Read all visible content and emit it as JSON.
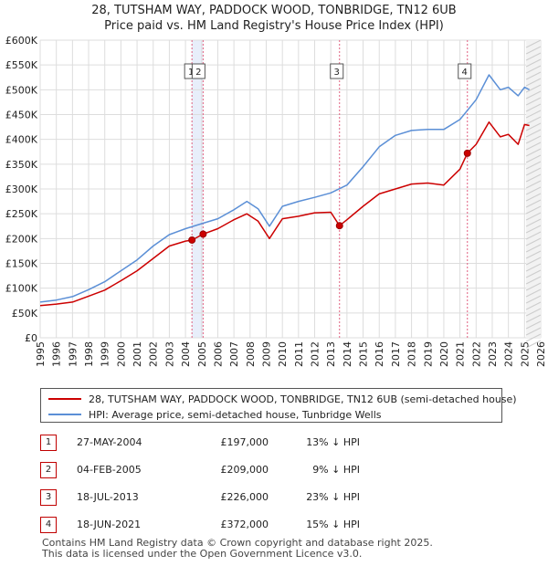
{
  "chart_data": {
    "type": "line",
    "title": "28, TUTSHAM WAY, PADDOCK WOOD, TONBRIDGE, TN12 6UB",
    "subtitle": "Price paid vs. HM Land Registry's House Price Index (HPI)",
    "xlim": [
      1995,
      2026
    ],
    "ylim": [
      0,
      600000
    ],
    "x_ticks": [
      "1995",
      "1996",
      "1997",
      "1998",
      "1999",
      "2000",
      "2001",
      "2002",
      "2003",
      "2004",
      "2005",
      "2006",
      "2007",
      "2008",
      "2009",
      "2010",
      "2011",
      "2012",
      "2013",
      "2014",
      "2015",
      "2016",
      "2017",
      "2018",
      "2019",
      "2020",
      "2021",
      "2022",
      "2023",
      "2024",
      "2025",
      "2026"
    ],
    "y_ticks": [
      {
        "value": 0,
        "label": "£0"
      },
      {
        "value": 50000,
        "label": "£50K"
      },
      {
        "value": 100000,
        "label": "£100K"
      },
      {
        "value": 150000,
        "label": "£150K"
      },
      {
        "value": 200000,
        "label": "£200K"
      },
      {
        "value": 250000,
        "label": "£250K"
      },
      {
        "value": 300000,
        "label": "£300K"
      },
      {
        "value": 350000,
        "label": "£350K"
      },
      {
        "value": 400000,
        "label": "£400K"
      },
      {
        "value": 450000,
        "label": "£450K"
      },
      {
        "value": 500000,
        "label": "£500K"
      },
      {
        "value": 550000,
        "label": "£550K"
      },
      {
        "value": 600000,
        "label": "£600K"
      }
    ],
    "series": [
      {
        "name": "28, TUTSHAM WAY, PADDOCK WOOD, TONBRIDGE, TN12 6UB (semi-detached house)",
        "color": "#cc0000",
        "points": [
          [
            1995.0,
            65000
          ],
          [
            1996.0,
            68000
          ],
          [
            1997.0,
            72000
          ],
          [
            1998.0,
            84000
          ],
          [
            1999.0,
            96000
          ],
          [
            2000.0,
            115000
          ],
          [
            2001.0,
            135000
          ],
          [
            2002.0,
            160000
          ],
          [
            2003.0,
            185000
          ],
          [
            2004.0,
            195000
          ],
          [
            2004.4,
            197000
          ],
          [
            2005.1,
            209000
          ],
          [
            2006.0,
            220000
          ],
          [
            2007.0,
            238000
          ],
          [
            2007.8,
            250000
          ],
          [
            2008.5,
            235000
          ],
          [
            2009.2,
            200000
          ],
          [
            2010.0,
            240000
          ],
          [
            2011.0,
            245000
          ],
          [
            2012.0,
            252000
          ],
          [
            2013.0,
            253000
          ],
          [
            2013.54,
            226000
          ],
          [
            2014.0,
            238000
          ],
          [
            2015.0,
            265000
          ],
          [
            2016.0,
            290000
          ],
          [
            2017.0,
            300000
          ],
          [
            2018.0,
            310000
          ],
          [
            2019.0,
            312000
          ],
          [
            2020.0,
            308000
          ],
          [
            2021.0,
            340000
          ],
          [
            2021.46,
            372000
          ],
          [
            2022.0,
            390000
          ],
          [
            2022.8,
            435000
          ],
          [
            2023.5,
            405000
          ],
          [
            2024.0,
            410000
          ],
          [
            2024.6,
            390000
          ],
          [
            2025.0,
            430000
          ],
          [
            2025.3,
            428000
          ]
        ]
      },
      {
        "name": "HPI: Average price, semi-detached house, Tunbridge Wells",
        "color": "#5b8fd6",
        "points": [
          [
            1995.0,
            72000
          ],
          [
            1996.0,
            76000
          ],
          [
            1997.0,
            83000
          ],
          [
            1998.0,
            97000
          ],
          [
            1999.0,
            113000
          ],
          [
            2000.0,
            135000
          ],
          [
            2001.0,
            157000
          ],
          [
            2002.0,
            185000
          ],
          [
            2003.0,
            208000
          ],
          [
            2004.0,
            220000
          ],
          [
            2005.0,
            230000
          ],
          [
            2006.0,
            240000
          ],
          [
            2007.0,
            258000
          ],
          [
            2007.8,
            275000
          ],
          [
            2008.5,
            260000
          ],
          [
            2009.2,
            225000
          ],
          [
            2010.0,
            265000
          ],
          [
            2011.0,
            275000
          ],
          [
            2012.0,
            283000
          ],
          [
            2013.0,
            292000
          ],
          [
            2014.0,
            308000
          ],
          [
            2015.0,
            345000
          ],
          [
            2016.0,
            385000
          ],
          [
            2017.0,
            408000
          ],
          [
            2018.0,
            418000
          ],
          [
            2019.0,
            420000
          ],
          [
            2020.0,
            420000
          ],
          [
            2021.0,
            440000
          ],
          [
            2022.0,
            480000
          ],
          [
            2022.8,
            530000
          ],
          [
            2023.5,
            500000
          ],
          [
            2024.0,
            505000
          ],
          [
            2024.6,
            488000
          ],
          [
            2025.0,
            505000
          ],
          [
            2025.3,
            500000
          ]
        ]
      }
    ],
    "sales": [
      {
        "id": "1",
        "year": 2004.4,
        "date": "27-MAY-2004",
        "price": 197000,
        "price_label": "£197,000",
        "hpi_label": "13% ↓ HPI"
      },
      {
        "id": "2",
        "year": 2005.09,
        "date": "04-FEB-2005",
        "price": 209000,
        "price_label": "£209,000",
        "hpi_label": "9% ↓ HPI"
      },
      {
        "id": "3",
        "year": 2013.54,
        "date": "18-JUL-2013",
        "price": 226000,
        "price_label": "£226,000",
        "hpi_label": "23% ↓ HPI"
      },
      {
        "id": "4",
        "year": 2021.46,
        "date": "18-JUN-2021",
        "price": 372000,
        "price_label": "£372,000",
        "hpi_label": "15% ↓ HPI"
      }
    ],
    "forecast_start": 2025.1
  },
  "legend": {
    "property_label": "28, TUTSHAM WAY, PADDOCK WOOD, TONBRIDGE, TN12 6UB (semi-detached house)",
    "hpi_label": "HPI: Average price, semi-detached house, Tunbridge Wells"
  },
  "footer": {
    "line1": "Contains HM Land Registry data © Crown copyright and database right 2025.",
    "line2": "This data is licensed under the Open Government Licence v3.0."
  }
}
